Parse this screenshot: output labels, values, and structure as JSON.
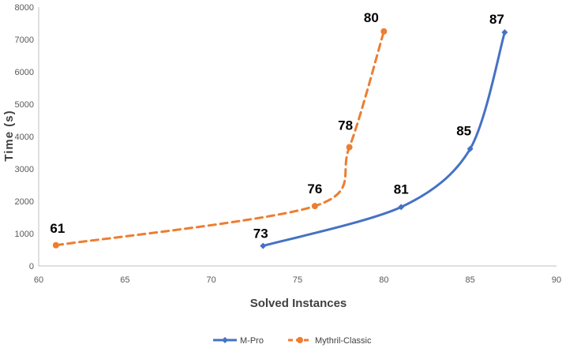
{
  "chart_data": {
    "type": "line",
    "xlabel": "Solved Instances",
    "ylabel": "Time (s)",
    "xlim": [
      60,
      90
    ],
    "ylim": [
      0,
      8000
    ],
    "xticks": [
      60,
      65,
      70,
      75,
      80,
      85,
      90
    ],
    "yticks": [
      0,
      1000,
      2000,
      3000,
      4000,
      5000,
      6000,
      7000,
      8000
    ],
    "grid": false,
    "legend_position": "bottom",
    "series": [
      {
        "name": "M-Pro",
        "color": "#4472C4",
        "line_style": "solid",
        "marker": "diamond",
        "x": [
          73,
          81,
          85,
          87
        ],
        "y": [
          620,
          1820,
          3620,
          7220
        ],
        "labels": [
          "73",
          "81",
          "85",
          "87"
        ]
      },
      {
        "name": "Mythril-Classic",
        "color": "#ED7D31",
        "line_style": "dashed",
        "marker": "circle",
        "x": [
          61,
          76,
          78,
          80
        ],
        "y": [
          640,
          1850,
          3670,
          7250
        ],
        "labels": [
          "61",
          "76",
          "78",
          "80"
        ]
      }
    ]
  }
}
